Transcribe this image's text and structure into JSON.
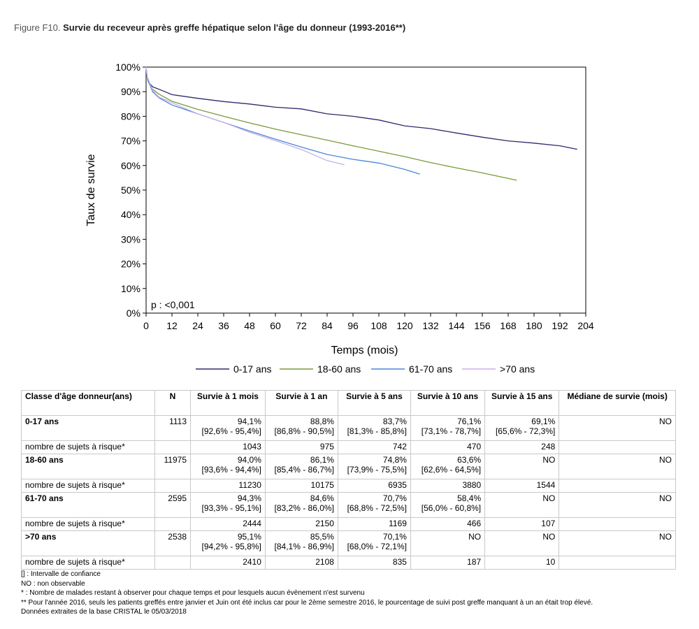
{
  "figure": {
    "label": "Figure F10.",
    "title": "Survie du receveur après greffe hépatique selon l'âge du donneur (1993-2016**)"
  },
  "chart_data": {
    "type": "line",
    "xlabel": "Temps (mois)",
    "ylabel": "Taux de survie",
    "xlim": [
      0,
      204
    ],
    "ylim": [
      0,
      100
    ],
    "x_ticks": [
      0,
      12,
      24,
      36,
      48,
      60,
      72,
      84,
      96,
      108,
      120,
      132,
      144,
      156,
      168,
      180,
      192,
      204
    ],
    "y_ticks": [
      "0%",
      "10%",
      "20%",
      "30%",
      "40%",
      "50%",
      "60%",
      "70%",
      "80%",
      "90%",
      "100%"
    ],
    "annotation": "p : <0,001",
    "legend_position": "bottom",
    "grid": false,
    "series": [
      {
        "name": "0-17 ans",
        "color": "#2e2a6e",
        "points": [
          [
            0,
            100
          ],
          [
            0.5,
            96
          ],
          [
            1,
            94.1
          ],
          [
            3,
            92
          ],
          [
            6,
            91
          ],
          [
            12,
            88.8
          ],
          [
            24,
            87.3
          ],
          [
            36,
            86
          ],
          [
            48,
            85
          ],
          [
            60,
            83.7
          ],
          [
            72,
            83
          ],
          [
            84,
            81
          ],
          [
            96,
            80
          ],
          [
            108,
            78.5
          ],
          [
            120,
            76.1
          ],
          [
            132,
            75
          ],
          [
            144,
            73.2
          ],
          [
            156,
            71.5
          ],
          [
            168,
            70
          ],
          [
            180,
            69.1
          ],
          [
            192,
            68
          ],
          [
            200,
            66.6
          ]
        ]
      },
      {
        "name": "18-60 ans",
        "color": "#7a9a3a",
        "points": [
          [
            0,
            100
          ],
          [
            0.5,
            96
          ],
          [
            1,
            94.0
          ],
          [
            3,
            91
          ],
          [
            6,
            89
          ],
          [
            12,
            86.1
          ],
          [
            24,
            82.8
          ],
          [
            36,
            80
          ],
          [
            48,
            77.3
          ],
          [
            60,
            74.8
          ],
          [
            72,
            72.5
          ],
          [
            84,
            70.3
          ],
          [
            96,
            68
          ],
          [
            108,
            65.8
          ],
          [
            120,
            63.6
          ],
          [
            132,
            61.2
          ],
          [
            144,
            59
          ],
          [
            156,
            57
          ],
          [
            172,
            54
          ]
        ]
      },
      {
        "name": "61-70 ans",
        "color": "#4a86d8",
        "points": [
          [
            0,
            100
          ],
          [
            0.5,
            96
          ],
          [
            1,
            94.3
          ],
          [
            3,
            90
          ],
          [
            6,
            87.5
          ],
          [
            12,
            84.6
          ],
          [
            24,
            81
          ],
          [
            36,
            77.5
          ],
          [
            48,
            74
          ],
          [
            60,
            70.7
          ],
          [
            72,
            67.5
          ],
          [
            84,
            64.5
          ],
          [
            96,
            62.5
          ],
          [
            108,
            61
          ],
          [
            120,
            58.4
          ],
          [
            127,
            56.5
          ]
        ]
      },
      {
        "name": ">70 ans",
        "color": "#c8b0e6",
        "points": [
          [
            0,
            100
          ],
          [
            0.5,
            96
          ],
          [
            1,
            95.1
          ],
          [
            3,
            90.5
          ],
          [
            6,
            87.8
          ],
          [
            12,
            85.5
          ],
          [
            24,
            81
          ],
          [
            36,
            77.5
          ],
          [
            48,
            73.5
          ],
          [
            60,
            70.1
          ],
          [
            72,
            66.5
          ],
          [
            84,
            62
          ],
          [
            92,
            60.3
          ]
        ]
      }
    ]
  },
  "table": {
    "headers": [
      "Classe d'âge donneur(ans)",
      "N",
      "Survie à 1 mois",
      "Survie à 1 an",
      "Survie à 5 ans",
      "Survie à 10 ans",
      "Survie à 15 ans",
      "Médiane de survie (mois)"
    ],
    "groups": [
      {
        "name": "0-17 ans",
        "n": "1113",
        "values": [
          "94,1%",
          "88,8%",
          "83,7%",
          "76,1%",
          "69,1%",
          "NO"
        ],
        "ci": [
          "[92,6% - 95,4%]",
          "[86,8% - 90,5%]",
          "[81,3% - 85,8%]",
          "[73,1% - 78,7%]",
          "[65,6% - 72,3%]",
          ""
        ],
        "risk_label": "nombre de sujets à risque*",
        "risk": [
          "1043",
          "975",
          "742",
          "470",
          "248",
          ""
        ]
      },
      {
        "name": "18-60 ans",
        "n": "11975",
        "values": [
          "94,0%",
          "86,1%",
          "74,8%",
          "63,6%",
          "NO",
          "NO"
        ],
        "ci": [
          "[93,6% - 94,4%]",
          "[85,4% - 86,7%]",
          "[73,9% - 75,5%]",
          "[62,6% - 64,5%]",
          "",
          ""
        ],
        "risk_label": "nombre de sujets à risque*",
        "risk": [
          "11230",
          "10175",
          "6935",
          "3880",
          "1544",
          ""
        ]
      },
      {
        "name": "61-70 ans",
        "n": "2595",
        "values": [
          "94,3%",
          "84,6%",
          "70,7%",
          "58,4%",
          "NO",
          "NO"
        ],
        "ci": [
          "[93,3% - 95,1%]",
          "[83,2% - 86,0%]",
          "[68,8% - 72,5%]",
          "[56,0% - 60,8%]",
          "",
          ""
        ],
        "risk_label": "nombre de sujets à risque*",
        "risk": [
          "2444",
          "2150",
          "1169",
          "466",
          "107",
          ""
        ]
      },
      {
        "name": ">70 ans",
        "n": "2538",
        "values": [
          "95,1%",
          "85,5%",
          "70,1%",
          "NO",
          "NO",
          "NO"
        ],
        "ci": [
          "[94,2% - 95,8%]",
          "[84,1% - 86,9%]",
          "[68,0% - 72,1%]",
          "",
          "",
          ""
        ],
        "risk_label": "nombre de sujets à risque*",
        "risk": [
          "2410",
          "2108",
          "835",
          "187",
          "10",
          ""
        ]
      }
    ]
  },
  "notes": [
    "[] : Intervalle de confiance",
    "NO : non observable",
    "* : Nombre de malades restant à observer pour chaque temps et pour lesquels aucun évènement n'est survenu",
    "** Pour l'année 2016, seuls les patients greffés entre janvier et Juin ont été inclus car pour le 2ème semestre 2016, le pourcentage de suivi post greffe manquant à un an était trop élevé.",
    "Données extraites de la base CRISTAL le 05/03/2018"
  ]
}
